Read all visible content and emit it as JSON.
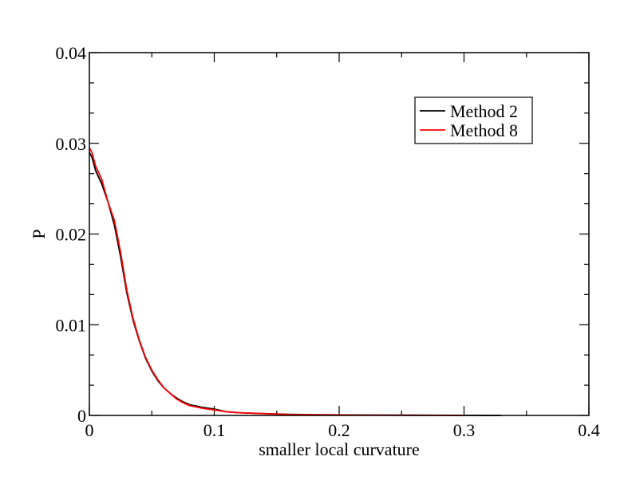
{
  "chart_data": {
    "type": "line",
    "title": "",
    "xlabel": "smaller local curvature",
    "ylabel": "P",
    "xlim": [
      0,
      0.4
    ],
    "ylim": [
      0,
      0.04
    ],
    "x_ticks": [
      0,
      0.1,
      0.2,
      0.3,
      0.4
    ],
    "x_tick_labels": [
      "0",
      "0.1",
      "0.2",
      "0.3",
      "0.4"
    ],
    "y_ticks": [
      0,
      0.01,
      0.02,
      0.03,
      0.04
    ],
    "y_tick_labels": [
      "0",
      "0.01",
      "0.02",
      "0.03",
      "0.04"
    ],
    "grid": false,
    "legend_position": "top-right",
    "series": [
      {
        "name": "Method 2",
        "color": "#000000",
        "x": [
          0,
          0.002,
          0.005,
          0.01,
          0.015,
          0.02,
          0.025,
          0.03,
          0.035,
          0.04,
          0.045,
          0.05,
          0.055,
          0.06,
          0.065,
          0.07,
          0.075,
          0.08,
          0.09,
          0.1,
          0.11,
          0.12,
          0.14,
          0.16,
          0.18,
          0.2,
          0.22,
          0.25,
          0.28,
          0.3,
          0.32,
          0.33
        ],
        "y": [
          0.029,
          0.0285,
          0.027,
          0.0255,
          0.0235,
          0.021,
          0.0175,
          0.0135,
          0.0105,
          0.0082,
          0.0063,
          0.0049,
          0.0038,
          0.003,
          0.0024,
          0.0019,
          0.0015,
          0.0012,
          0.0009,
          0.0007,
          0.0004,
          0.0003,
          0.0002,
          0.00012,
          8e-05,
          6e-05,
          4e-05,
          3e-05,
          2e-05,
          1e-05,
          5e-06,
          0
        ]
      },
      {
        "name": "Method 8",
        "color": "#ff0000",
        "x": [
          0,
          0.002,
          0.005,
          0.01,
          0.015,
          0.02,
          0.025,
          0.03,
          0.035,
          0.04,
          0.045,
          0.05,
          0.055,
          0.06,
          0.065,
          0.07,
          0.075,
          0.08,
          0.09,
          0.1,
          0.11,
          0.12,
          0.14,
          0.16,
          0.18,
          0.2,
          0.22,
          0.25,
          0.28,
          0.3
        ],
        "y": [
          0.0295,
          0.029,
          0.0275,
          0.026,
          0.0235,
          0.0215,
          0.018,
          0.0138,
          0.0107,
          0.0083,
          0.0064,
          0.005,
          0.0039,
          0.003,
          0.0024,
          0.0018,
          0.0014,
          0.0011,
          0.0008,
          0.0006,
          0.0004,
          0.0003,
          0.0002,
          0.0001,
          7e-05,
          5e-05,
          3e-05,
          2e-05,
          1e-05,
          0
        ]
      }
    ]
  }
}
